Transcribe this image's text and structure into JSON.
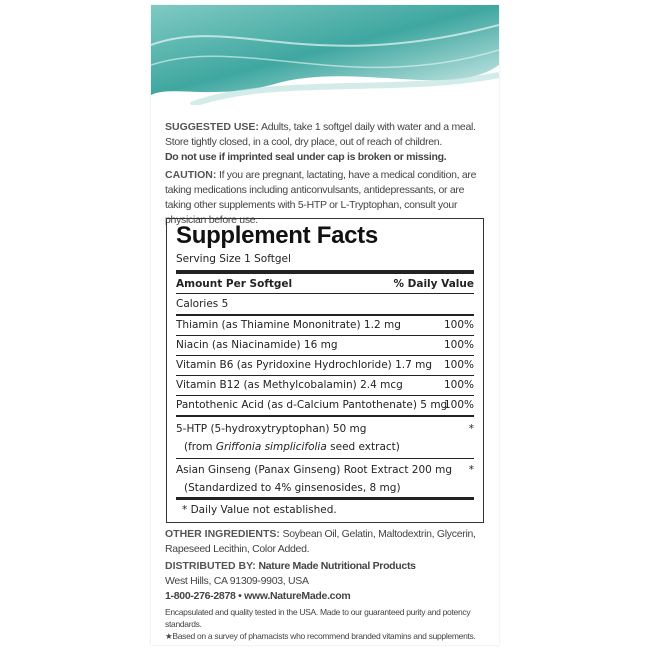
{
  "suggested_use": {
    "heading": "SUGGESTED USE:",
    "line1": "Adults, take 1 softgel daily with water and a meal.",
    "line2": "Store tightly closed, in a cool, dry place, out of reach of children.",
    "line3": "Do not use if imprinted seal under cap is broken or missing."
  },
  "caution": {
    "heading": "CAUTION:",
    "text": "If you are pregnant, lactating, have a medical condition, are taking medications including anticonvulsants, antidepressants, or are taking other supplements with 5-HTP or L-Tryptophan, consult your physician before use."
  },
  "facts": {
    "title": "Supplement Facts",
    "serving": "Serving Size 1 Softgel",
    "col1": "Amount Per Softgel",
    "col2": "% Daily Value",
    "calories": "Calories  5",
    "rows": [
      {
        "name": "Thiamin (as Thiamine Mononitrate)  1.2 mg",
        "dv": "100%"
      },
      {
        "name": "Niacin (as Niacinamide)  16 mg",
        "dv": "100%"
      },
      {
        "name": "Vitamin B6 (as Pyridoxine Hydrochloride)  1.7 mg",
        "dv": "100%"
      },
      {
        "name": "Vitamin B12 (as Methylcobalamin)  2.4 mcg",
        "dv": "100%"
      },
      {
        "name": "Pantothenic Acid (as d-Calcium Pantothenate)  5 mg",
        "dv": "100%"
      }
    ],
    "htp": {
      "name": "5-HTP (5-hydroxytryptophan)  50 mg",
      "sub_pre": "(from ",
      "sub_italic": "Griffonia simplicifolia",
      "sub_post": " seed extract)",
      "dv": "*"
    },
    "ginseng": {
      "name": "Asian Ginseng (Panax Ginseng) Root Extract  200 mg",
      "sub": "(Standardized to 4% ginsenosides, 8 mg)",
      "dv": "*"
    },
    "footnote": "* Daily Value not established."
  },
  "other": {
    "heading": "OTHER INGREDIENTS:",
    "text": "Soybean Oil, Gelatin, Maltodextrin, Glycerin, Rapeseed Lecithin, Color Added."
  },
  "distributed": {
    "heading": "DISTRIBUTED BY:",
    "name": "Nature Made Nutritional Products",
    "address": "West Hills, CA 91309-9903, USA",
    "contact": "1-800-276-2878 • www.NatureMade.com"
  },
  "fine": {
    "line1": "Encapsulated and quality tested in the USA. Made to our guaranteed purity and potency standards.",
    "line2": "★Based on a survey of phamacists who recommend branded vitamins and supplements."
  },
  "colors": {
    "wave": "#5fb8b0",
    "wave_light": "#cfe9e6"
  }
}
